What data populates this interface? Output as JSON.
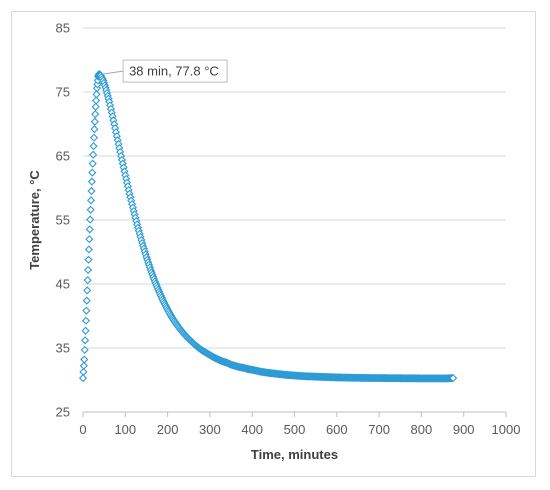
{
  "chart_data": {
    "type": "scatter",
    "title": "",
    "xlabel": "Time, minutes",
    "ylabel": "Temperature, °C",
    "xlim": [
      0,
      1000
    ],
    "ylim": [
      25,
      85
    ],
    "xticks": [
      0,
      100,
      200,
      300,
      400,
      500,
      600,
      700,
      800,
      900,
      1000
    ],
    "yticks": [
      25,
      35,
      45,
      55,
      65,
      75,
      85
    ],
    "grid": "horizontal",
    "marker": "diamond",
    "series_color": "#2e9bd6",
    "series": [
      {
        "x": [
          0,
          3,
          6,
          9,
          12,
          15,
          18,
          21,
          24,
          27,
          30,
          33,
          36,
          38,
          42,
          48,
          55,
          62,
          70,
          80,
          90,
          100,
          110,
          120,
          130,
          140,
          150,
          160,
          170,
          180,
          190,
          200,
          210,
          220,
          230,
          240,
          250,
          260,
          270,
          280,
          290,
          300,
          310,
          320,
          330,
          340,
          350,
          360,
          370,
          380,
          390,
          400,
          420,
          440,
          460,
          480,
          500,
          520,
          540,
          560,
          580,
          600,
          620,
          640,
          660,
          680,
          700,
          720,
          740,
          760,
          780,
          800,
          820,
          840,
          860,
          875
        ],
        "y": [
          30.3,
          33.2,
          37.7,
          42.4,
          47.2,
          52.0,
          56.6,
          61.0,
          65.2,
          69.2,
          72.7,
          75.6,
          77.4,
          77.8,
          77.6,
          76.8,
          75.3,
          73.5,
          71.2,
          68.1,
          65.0,
          62.0,
          59.1,
          56.4,
          53.8,
          51.4,
          49.2,
          47.2,
          45.4,
          43.8,
          42.3,
          41.0,
          39.8,
          38.8,
          37.9,
          37.1,
          36.4,
          35.8,
          35.2,
          34.7,
          34.3,
          33.9,
          33.5,
          33.2,
          32.9,
          32.7,
          32.4,
          32.2,
          32.0,
          31.9,
          31.7,
          31.6,
          31.3,
          31.1,
          30.95,
          30.8,
          30.7,
          30.6,
          30.55,
          30.5,
          30.45,
          30.4,
          30.38,
          30.35,
          30.33,
          30.31,
          30.3,
          30.29,
          30.28,
          30.27,
          30.26,
          30.25,
          30.25,
          30.25,
          30.25,
          30.3
        ]
      }
    ],
    "annotation": {
      "text": "38 min, 77.8 °C",
      "x": 38,
      "y": 77.8
    }
  }
}
